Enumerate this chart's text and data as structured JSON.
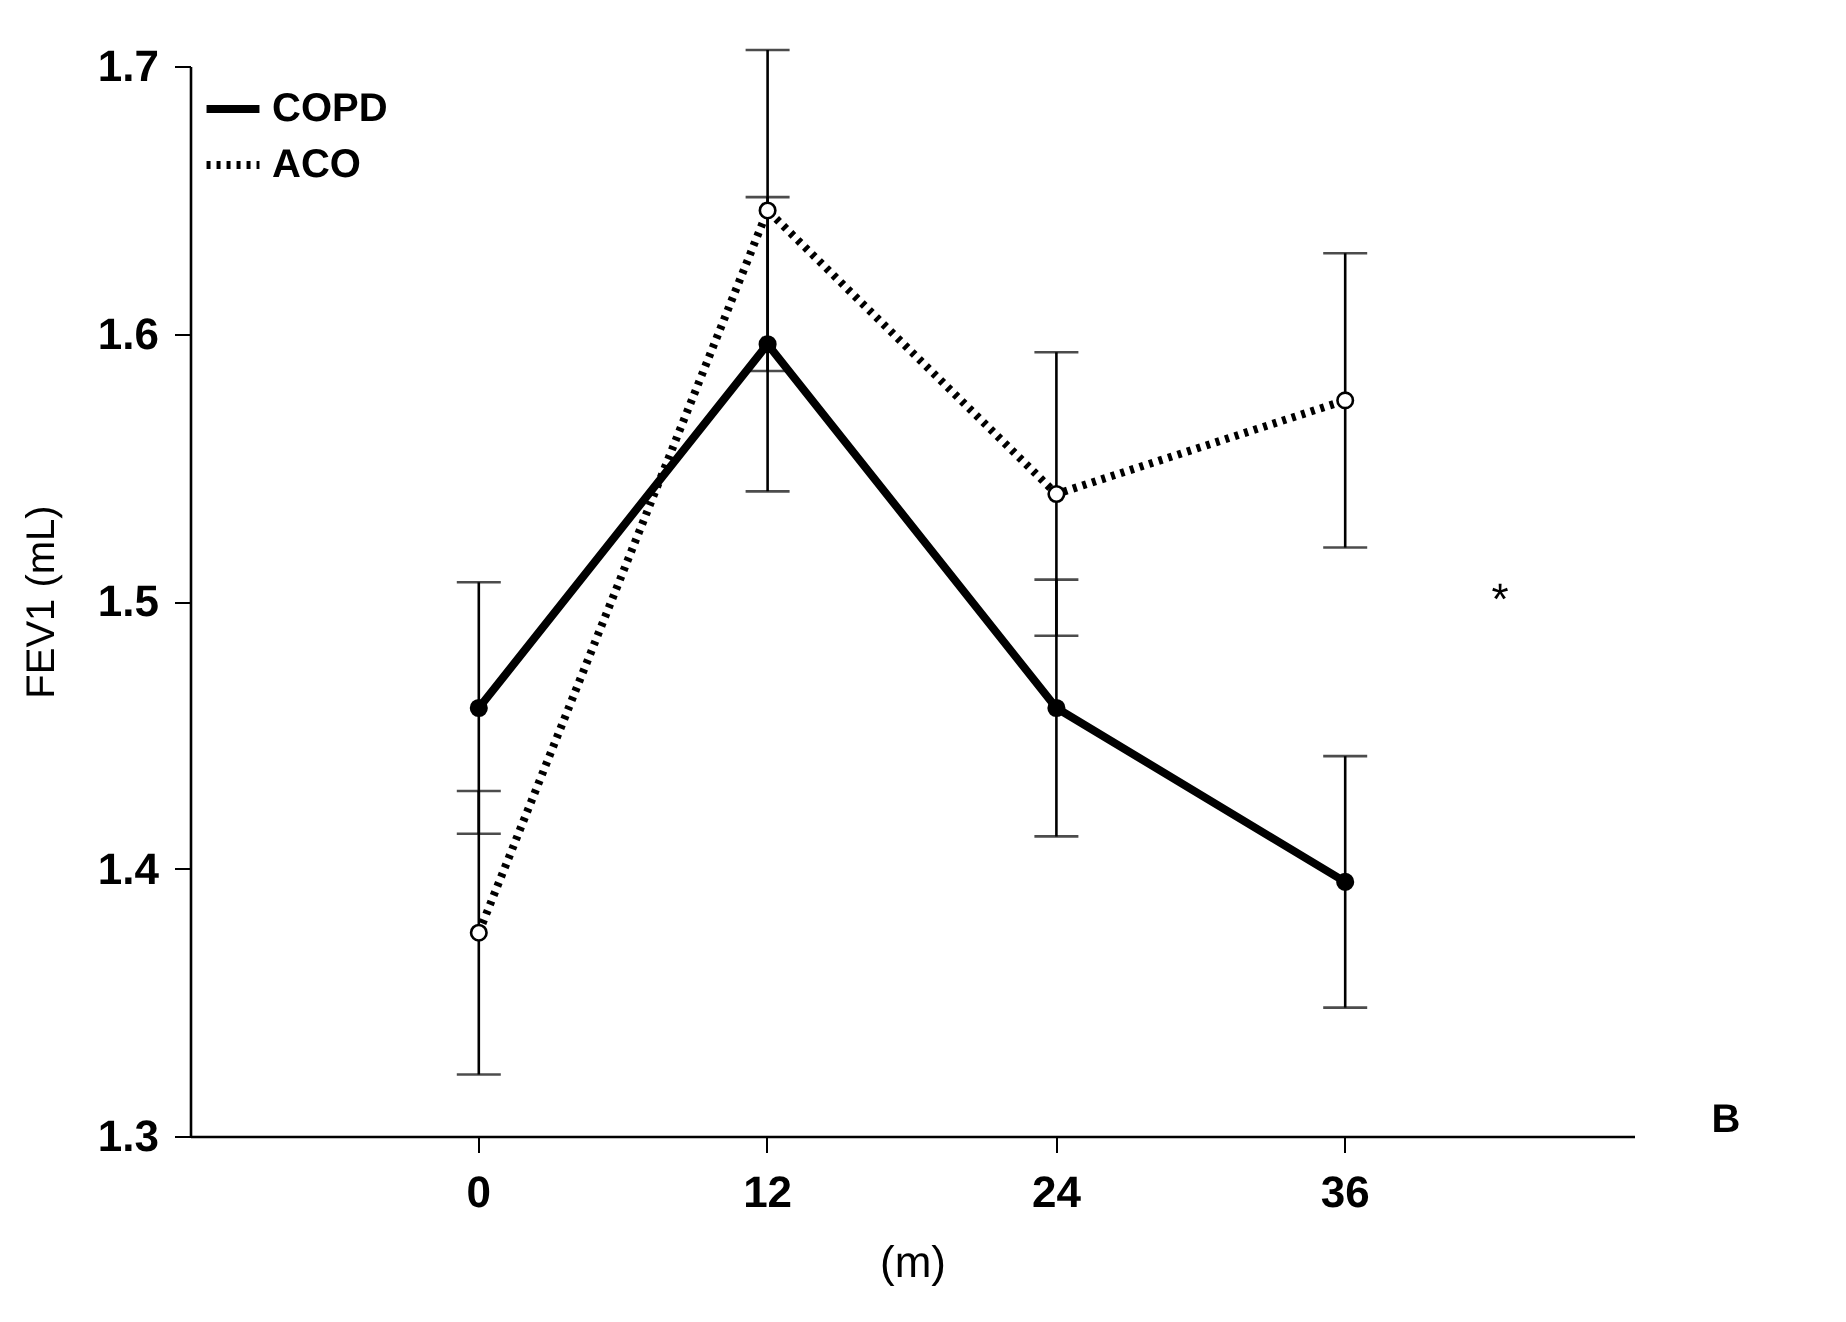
{
  "chart_data": {
    "type": "line",
    "xlabel": "(m)",
    "ylabel": "FEV1 (mL)",
    "categories": [
      "0",
      "12",
      "24",
      "36"
    ],
    "series": [
      {
        "name": "COPD",
        "color": "#000000",
        "line_style": "solid",
        "marker": "circle",
        "values": [
          1.46,
          1.596,
          1.46,
          1.395
        ],
        "errors": [
          0.047,
          0.055,
          0.048,
          0.047
        ]
      },
      {
        "name": "ACO",
        "color": "#000000",
        "line_style": "dotted",
        "marker": "circle",
        "values": [
          1.376,
          1.646,
          1.54,
          1.575
        ],
        "errors": [
          0.053,
          0.06,
          0.053,
          0.055
        ]
      }
    ],
    "ylim": [
      1.3,
      1.7
    ],
    "yticks": [
      1.3,
      1.4,
      1.5,
      1.6,
      1.7
    ],
    "grid": false,
    "legend": "top left",
    "annotations": [
      "*",
      "B"
    ]
  }
}
